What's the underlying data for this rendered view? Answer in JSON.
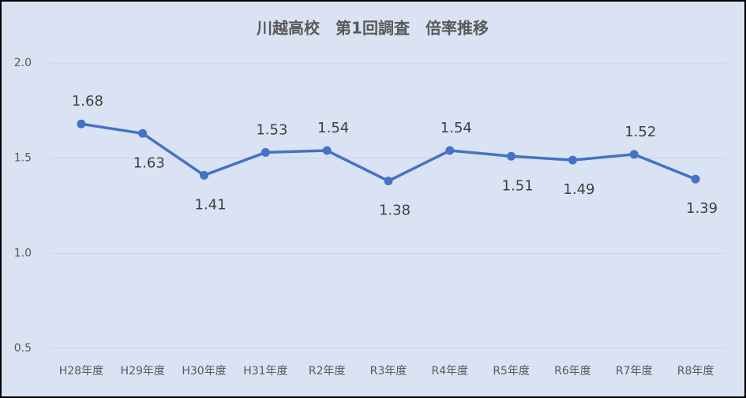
{
  "chart_data": {
    "type": "line",
    "title": "川越高校　第1回調査　倍率推移",
    "categories": [
      "H28年度",
      "H29年度",
      "H30年度",
      "H31年度",
      "R2年度",
      "R3年度",
      "R4年度",
      "R5年度",
      "R6年度",
      "R7年度",
      "R8年度"
    ],
    "series": [
      {
        "name": "倍率",
        "color": "#4472c4",
        "values": [
          1.68,
          1.63,
          1.41,
          1.53,
          1.54,
          1.38,
          1.54,
          1.51,
          1.49,
          1.52,
          1.39
        ]
      }
    ],
    "ylim": [
      0.5,
      2.0
    ],
    "yticks": [
      0.5,
      {
        "value": 1.0,
        "label": "1.0"
      },
      1.5,
      {
        "value": 2.0,
        "label": "2.0"
      }
    ],
    "grid": true
  }
}
